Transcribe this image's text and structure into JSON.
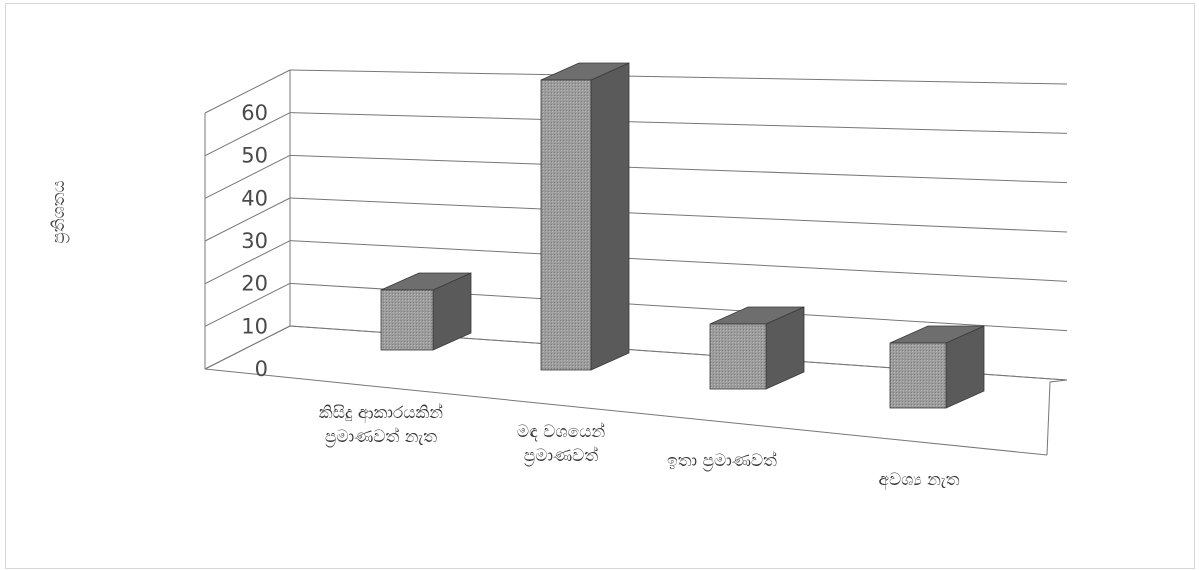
{
  "chart_data": {
    "type": "bar",
    "title": "",
    "ylabel": "ප්‍රතිශතය",
    "xlabel": "",
    "categories": [
      [
        "කිසිදු ආකාරයකින්",
        "ප්‍රමාණවත් නැත"
      ],
      [
        "මඳ වශයෙන්",
        "ප්‍රමාණවත්"
      ],
      [
        "ඉතා ප්‍රමාණවත්"
      ],
      [
        "අවශ්‍ය නැත"
      ]
    ],
    "values": [
      12,
      58,
      13,
      13
    ],
    "ylim": [
      0,
      60
    ],
    "yticks": [
      "0",
      "10",
      "20",
      "30",
      "40",
      "50",
      "60"
    ],
    "grid": true,
    "legend": "none",
    "style": "3d-column",
    "colors": {
      "front": "#9c9c9c",
      "side": "#5a5a5a",
      "top": "#6e6e6e",
      "grid": "#777777"
    }
  }
}
